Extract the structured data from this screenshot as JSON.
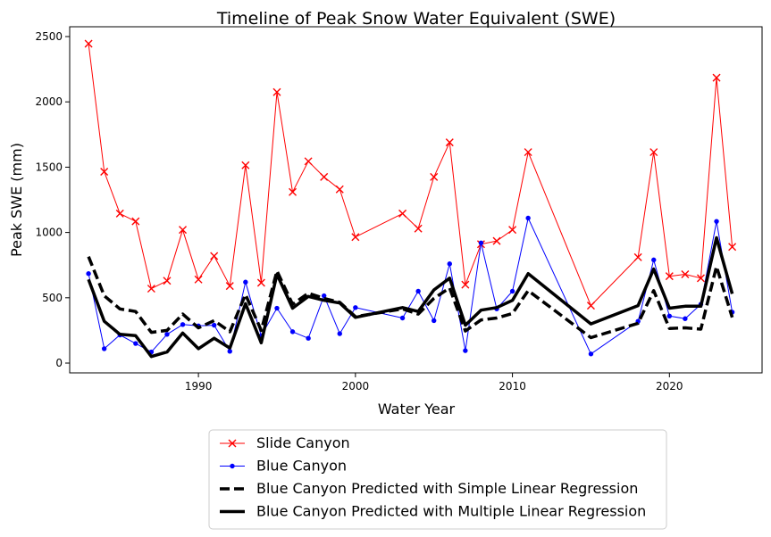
{
  "chart_data": {
    "type": "line",
    "title": "Timeline of Peak Snow Water Equivalent (SWE)",
    "xlabel": "Water Year",
    "ylabel": "Peak SWE (mm)",
    "xlim": [
      1981.8,
      2025.9
    ],
    "ylim": [
      -75,
      2575
    ],
    "xticks": [
      1990,
      2000,
      2010,
      2020
    ],
    "yticks": [
      0,
      500,
      1000,
      1500,
      2000,
      2500
    ],
    "grid": false,
    "legend_position": "bottom-center",
    "series": [
      {
        "name": "Slide Canyon",
        "color": "#ff0000",
        "style": "thin-x-marker",
        "x": [
          1983,
          1984,
          1985,
          1986,
          1987,
          1988,
          1989,
          1990,
          1991,
          1992,
          1993,
          1994,
          1995,
          1996,
          1997,
          1998,
          1999,
          2000,
          2003,
          2004,
          2005,
          2006,
          2007,
          2008,
          2009,
          2010,
          2011,
          2015,
          2018,
          2019,
          2020,
          2021,
          2022,
          2023,
          2024
        ],
        "y": [
          2445,
          1465,
          1145,
          1085,
          570,
          630,
          1020,
          640,
          820,
          590,
          1515,
          615,
          2075,
          1310,
          1545,
          1425,
          1330,
          965,
          1145,
          1030,
          1425,
          1690,
          600,
          910,
          935,
          1020,
          1615,
          440,
          810,
          1615,
          665,
          680,
          650,
          2185,
          890
        ]
      },
      {
        "name": "Blue Canyon",
        "color": "#0000ff",
        "style": "thin-dot-marker",
        "x": [
          1983,
          1984,
          1985,
          1986,
          1987,
          1988,
          1989,
          1990,
          1991,
          1992,
          1993,
          1994,
          1995,
          1996,
          1997,
          1998,
          1999,
          2000,
          2003,
          2004,
          2005,
          2006,
          2007,
          2008,
          2009,
          2010,
          2011,
          2015,
          2018,
          2019,
          2020,
          2021,
          2022,
          2023,
          2024
        ],
        "y": [
          685,
          110,
          215,
          150,
          85,
          220,
          295,
          285,
          290,
          90,
          620,
          210,
          420,
          240,
          190,
          515,
          225,
          425,
          345,
          550,
          325,
          760,
          95,
          920,
          415,
          550,
          1110,
          70,
          320,
          790,
          360,
          340,
          450,
          1085,
          390
        ]
      },
      {
        "name": "Blue Canyon Predicted with Simple Linear Regression",
        "color": "#000000",
        "style": "thick-dashed",
        "x": [
          1983,
          1984,
          1985,
          1986,
          1987,
          1988,
          1989,
          1990,
          1991,
          1992,
          1993,
          1994,
          1995,
          1996,
          1997,
          1998,
          1999,
          2000,
          2003,
          2004,
          2005,
          2006,
          2007,
          2008,
          2009,
          2010,
          2011,
          2015,
          2018,
          2019,
          2020,
          2021,
          2022,
          2023,
          2024
        ],
        "y": [
          815,
          515,
          415,
          395,
          235,
          250,
          375,
          270,
          325,
          240,
          525,
          250,
          705,
          450,
          535,
          495,
          465,
          355,
          415,
          375,
          495,
          575,
          245,
          330,
          345,
          380,
          555,
          195,
          305,
          555,
          265,
          270,
          260,
          740,
          350
        ]
      },
      {
        "name": "Blue Canyon Predicted with Multiple Linear Regression",
        "color": "#000000",
        "style": "thick-solid",
        "x": [
          1983,
          1984,
          1985,
          1986,
          1987,
          1988,
          1989,
          1990,
          1991,
          1992,
          1993,
          1994,
          1995,
          1996,
          1997,
          1998,
          1999,
          2000,
          2003,
          2004,
          2005,
          2006,
          2007,
          2008,
          2009,
          2010,
          2011,
          2015,
          2018,
          2019,
          2020,
          2021,
          2022,
          2023,
          2024
        ],
        "y": [
          640,
          320,
          220,
          210,
          50,
          85,
          230,
          110,
          190,
          115,
          455,
          155,
          680,
          420,
          510,
          480,
          460,
          350,
          425,
          395,
          560,
          650,
          290,
          405,
          425,
          480,
          685,
          300,
          440,
          720,
          420,
          435,
          435,
          960,
          530
        ]
      }
    ]
  }
}
